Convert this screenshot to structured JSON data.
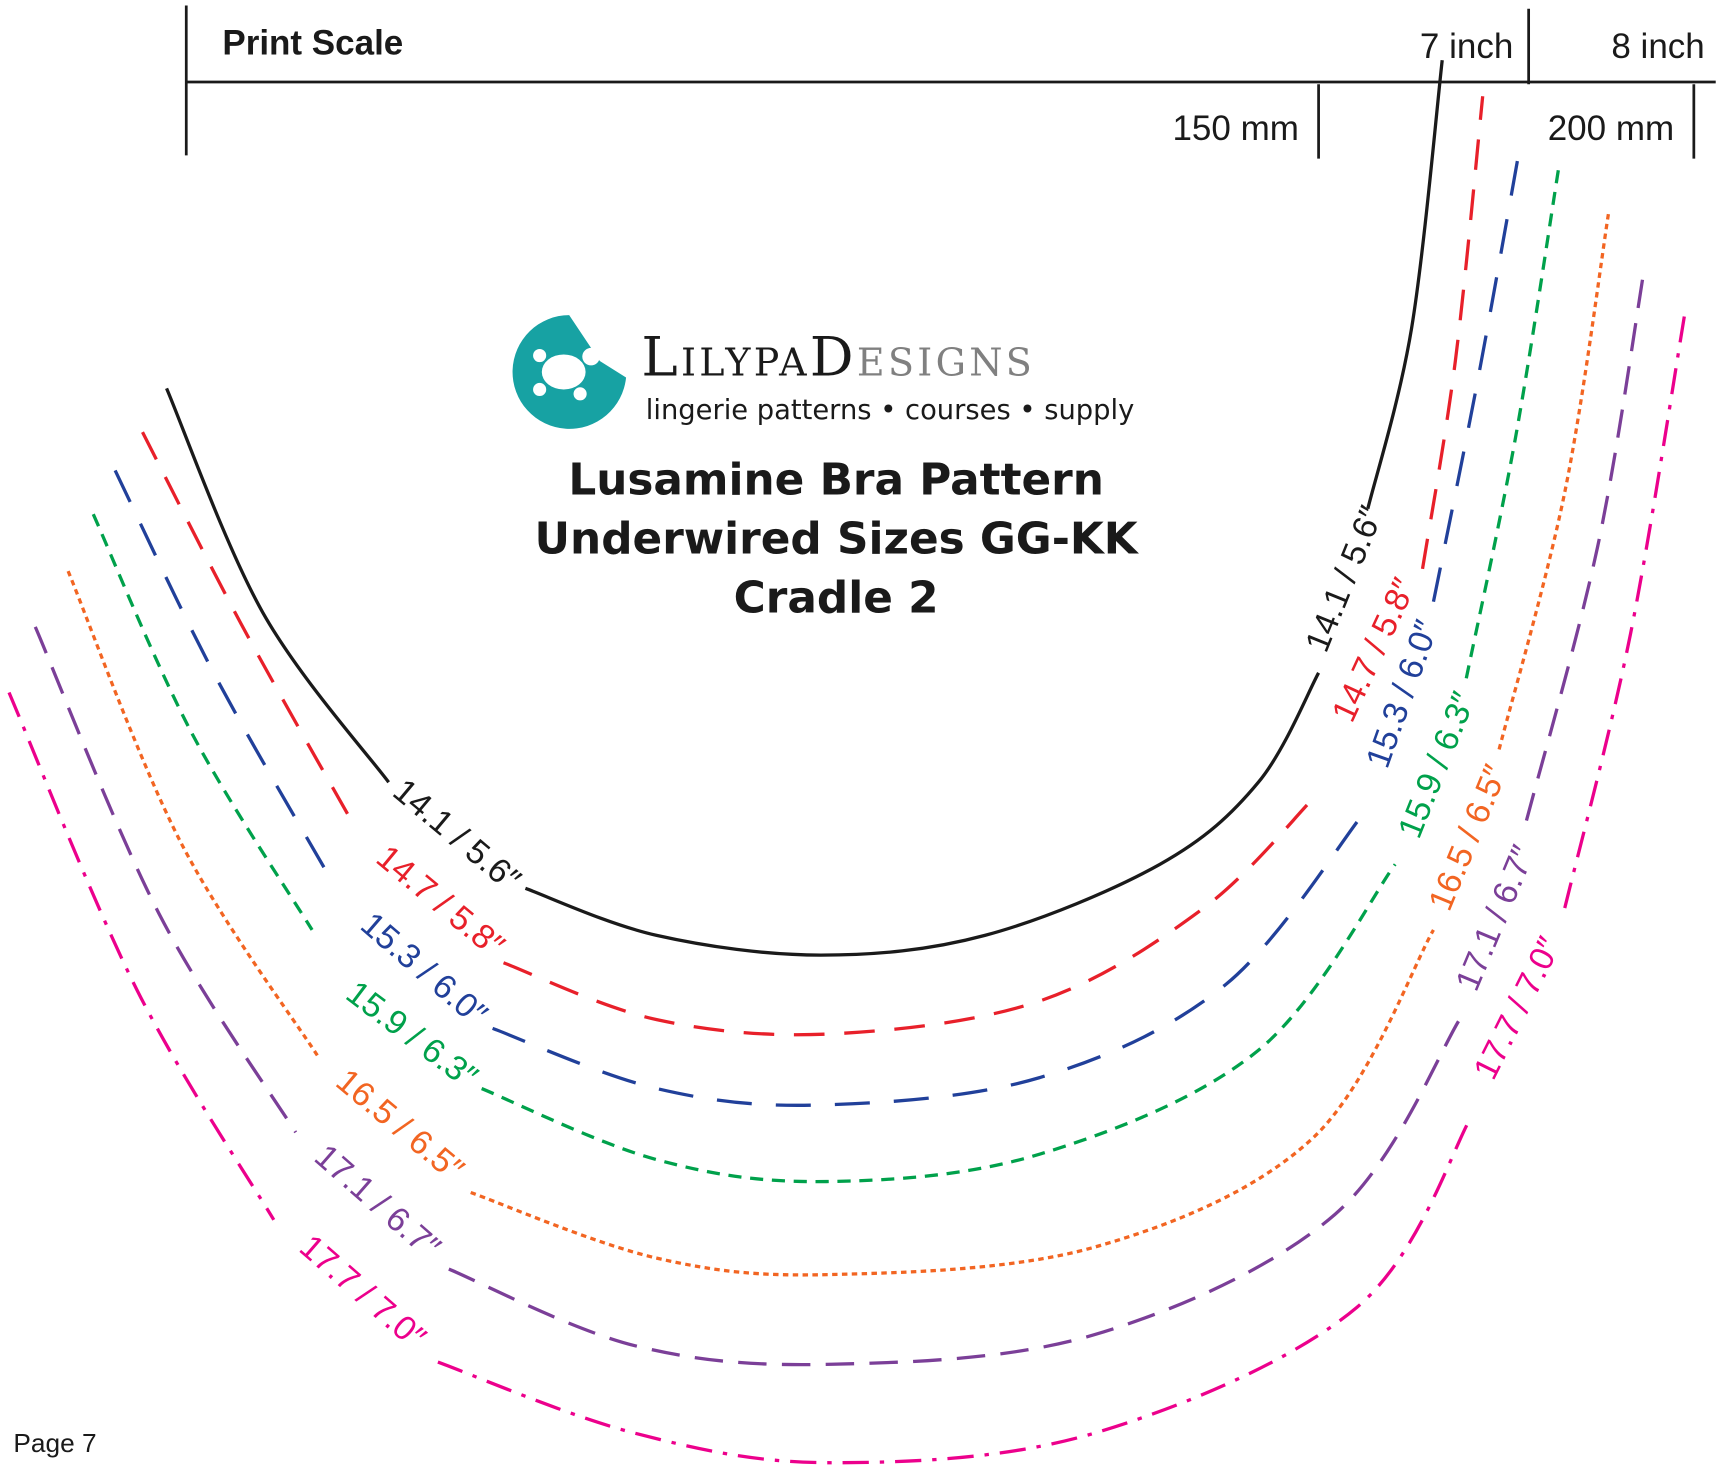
{
  "header": {
    "title": "Print Scale",
    "inch_labels": [
      "7 inch",
      "8 inch"
    ],
    "mm_labels": [
      "150 mm",
      "200 mm"
    ]
  },
  "logo": {
    "brand_first": "LilypaD",
    "brand_second": "esigns",
    "tagline": "lingerie patterns • courses • supply"
  },
  "title_lines": [
    "Lusamine Bra Pattern",
    "Underwired Sizes GG-KK",
    "Cradle 2"
  ],
  "curves": [
    {
      "label": "14.1 / 5.6″",
      "color": "#1a1a1a"
    },
    {
      "label": "14.7 / 5.8″",
      "color": "#e8202a"
    },
    {
      "label": "15.3 / 6.0″",
      "color": "#21409a"
    },
    {
      "label": "15.9 / 6.3″",
      "color": "#00a14b"
    },
    {
      "label": "16.5 / 6.5″",
      "color": "#f26522"
    },
    {
      "label": "17.1 / 6.7″",
      "color": "#7b3f98"
    },
    {
      "label": "17.7 / 7.0″",
      "color": "#ec008c"
    }
  ],
  "footer": {
    "page": "Page 7"
  }
}
